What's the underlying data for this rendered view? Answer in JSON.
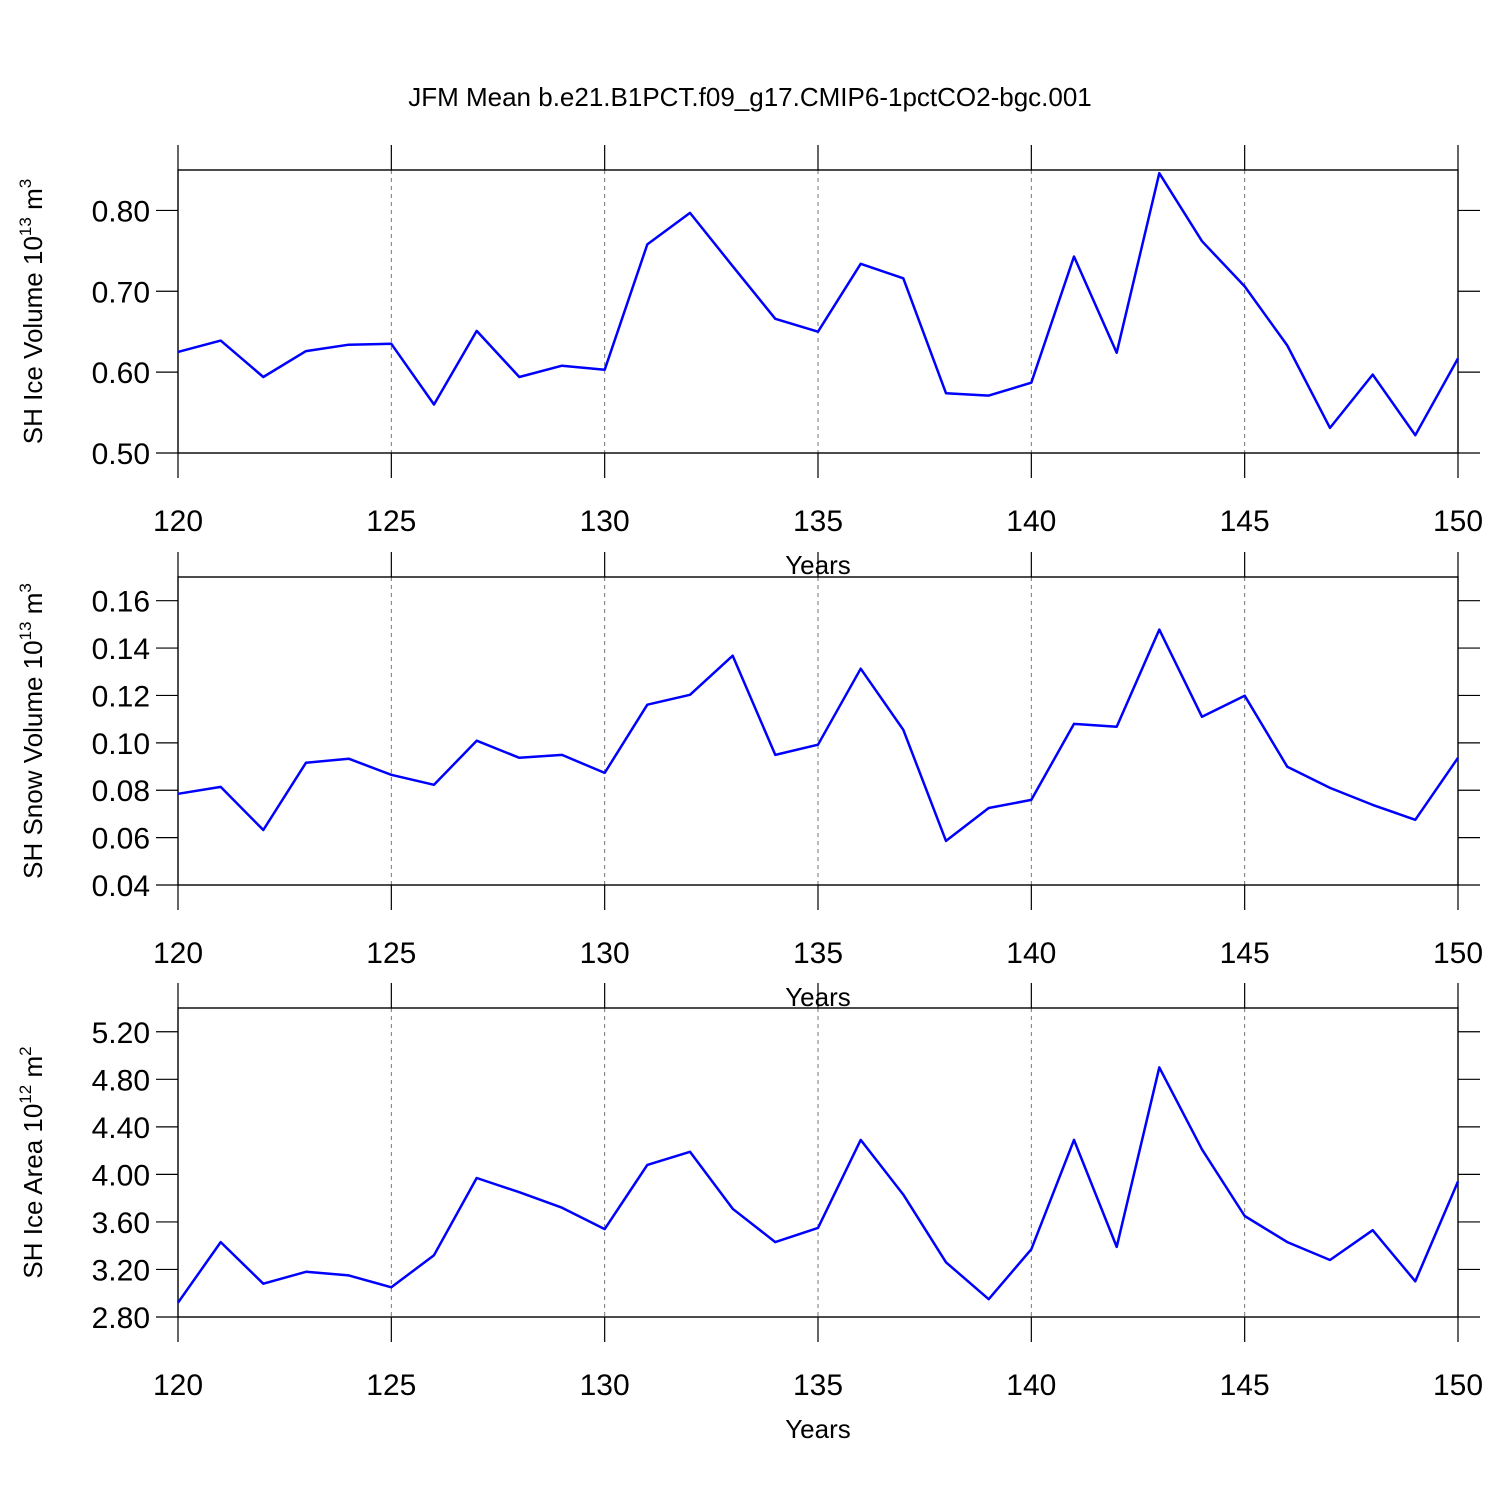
{
  "chart_data": [
    {
      "type": "line",
      "title": "JFM Mean b.e21.B1PCT.f09_g17.CMIP6-1pctCO2-bgc.001",
      "xlabel": "Years",
      "ylabel": [
        "SH Ice Volume 10",
        "13",
        " m",
        "3"
      ],
      "x": [
        120,
        121,
        122,
        123,
        124,
        125,
        126,
        127,
        128,
        129,
        130,
        131,
        132,
        133,
        134,
        135,
        136,
        137,
        138,
        139,
        140,
        141,
        142,
        143,
        144,
        145,
        146,
        147,
        148,
        149,
        150
      ],
      "values": [
        0.625,
        0.639,
        0.594,
        0.626,
        0.634,
        0.635,
        0.56,
        0.651,
        0.594,
        0.608,
        0.603,
        0.758,
        0.797,
        0.731,
        0.666,
        0.65,
        0.734,
        0.716,
        0.574,
        0.571,
        0.587,
        0.743,
        0.624,
        0.846,
        0.762,
        0.706,
        0.633,
        0.531,
        0.597,
        0.522,
        0.617
      ],
      "color": "#0000ff",
      "xlim": [
        120,
        150
      ],
      "xticks": [
        120,
        125,
        130,
        135,
        140,
        145,
        150
      ],
      "ylim": [
        0.5,
        0.85
      ],
      "yticks": [
        {
          "value": 0.5,
          "label": "0.50"
        },
        {
          "value": 0.6,
          "label": "0.60"
        },
        {
          "value": 0.7,
          "label": "0.70"
        },
        {
          "value": 0.8,
          "label": "0.80"
        }
      ],
      "xgrid": true
    },
    {
      "type": "line",
      "xlabel": "Years",
      "ylabel": [
        "SH Snow Volume 10",
        "13",
        " m",
        "3"
      ],
      "x": [
        120,
        121,
        122,
        123,
        124,
        125,
        126,
        127,
        128,
        129,
        130,
        131,
        132,
        133,
        134,
        135,
        136,
        137,
        138,
        139,
        140,
        141,
        142,
        143,
        144,
        145,
        146,
        147,
        148,
        149,
        150
      ],
      "values": [
        0.0785,
        0.0814,
        0.0632,
        0.0916,
        0.0933,
        0.0865,
        0.0823,
        0.1009,
        0.0937,
        0.0949,
        0.0873,
        0.1161,
        0.1203,
        0.1368,
        0.0949,
        0.0992,
        0.1313,
        0.1055,
        0.0586,
        0.0725,
        0.0759,
        0.108,
        0.1068,
        0.1478,
        0.111,
        0.1199,
        0.0899,
        0.081,
        0.0738,
        0.0675,
        0.0937
      ],
      "color": "#0000ff",
      "xlim": [
        120,
        150
      ],
      "xticks": [
        120,
        125,
        130,
        135,
        140,
        145,
        150
      ],
      "ylim": [
        0.04,
        0.17
      ],
      "yticks": [
        0.04,
        0.06,
        0.08,
        {
          "value": 0.1,
          "label": "0.10"
        },
        0.12,
        0.14,
        0.16
      ],
      "xgrid": true
    },
    {
      "type": "line",
      "xlabel": "Years",
      "ylabel": [
        "SH Ice Area 10",
        "12",
        " m",
        "2"
      ],
      "x": [
        120,
        121,
        122,
        123,
        124,
        125,
        126,
        127,
        128,
        129,
        130,
        131,
        132,
        133,
        134,
        135,
        136,
        137,
        138,
        139,
        140,
        141,
        142,
        143,
        144,
        145,
        146,
        147,
        148,
        149,
        150
      ],
      "values": [
        2.92,
        3.43,
        3.08,
        3.18,
        3.15,
        3.05,
        3.32,
        3.97,
        3.85,
        3.72,
        3.54,
        4.08,
        4.19,
        3.71,
        3.43,
        3.55,
        4.29,
        3.83,
        3.26,
        2.95,
        3.37,
        4.29,
        3.39,
        4.9,
        4.21,
        3.65,
        3.43,
        3.28,
        3.53,
        3.1,
        3.94
      ],
      "color": "#0000ff",
      "xlim": [
        120,
        150
      ],
      "xticks": [
        120,
        125,
        130,
        135,
        140,
        145,
        150
      ],
      "ylim": [
        2.8,
        5.4
      ],
      "yticks": [
        {
          "value": 2.8,
          "label": "2.80"
        },
        {
          "value": 3.2,
          "label": "3.20"
        },
        {
          "value": 3.6,
          "label": "3.60"
        },
        {
          "value": 4.0,
          "label": "4.00"
        },
        {
          "value": 4.4,
          "label": "4.40"
        },
        {
          "value": 4.8,
          "label": "4.80"
        },
        {
          "value": 5.2,
          "label": "5.20"
        }
      ],
      "xgrid": true
    }
  ]
}
